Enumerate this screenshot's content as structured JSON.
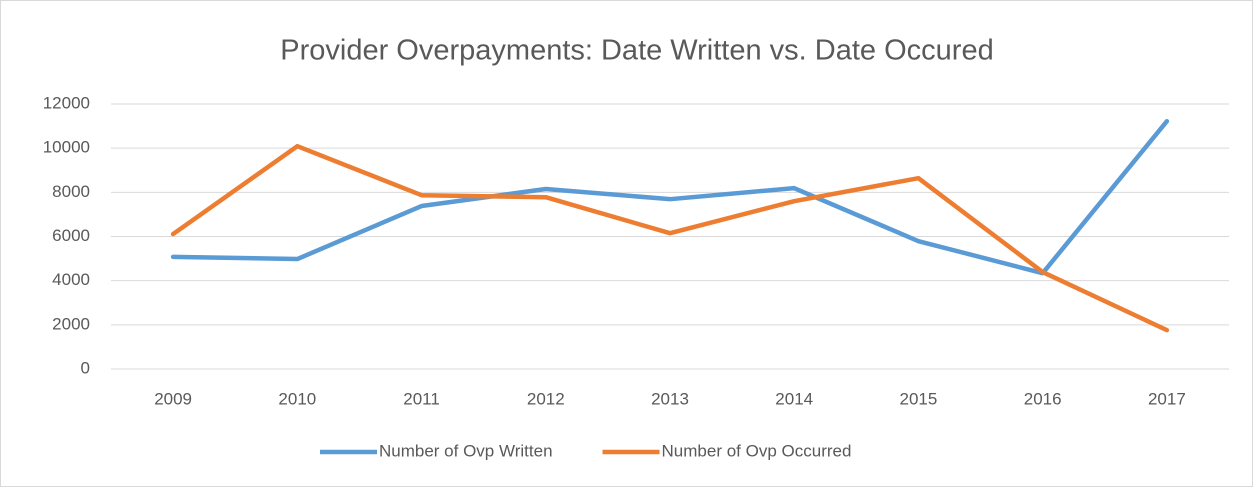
{
  "chart_data": {
    "type": "line",
    "title": "Provider Overpayments: Date Written vs. Date Occured",
    "categories": [
      "2009",
      "2010",
      "2011",
      "2012",
      "2013",
      "2014",
      "2015",
      "2016",
      "2017"
    ],
    "series": [
      {
        "name": "Number of Ovp Written",
        "color": "#5b9bd5",
        "values": [
          5080,
          4980,
          7380,
          8150,
          7690,
          8190,
          5790,
          4340,
          11220
        ]
      },
      {
        "name": "Number of Ovp Occurred",
        "color": "#ed7d31",
        "values": [
          6110,
          10090,
          7870,
          7780,
          6150,
          7600,
          8640,
          4390,
          1760
        ]
      }
    ],
    "ylim": [
      0,
      12000
    ],
    "yticks": [
      0,
      2000,
      4000,
      6000,
      8000,
      10000,
      12000
    ],
    "grid": true,
    "legend": "bottom"
  }
}
